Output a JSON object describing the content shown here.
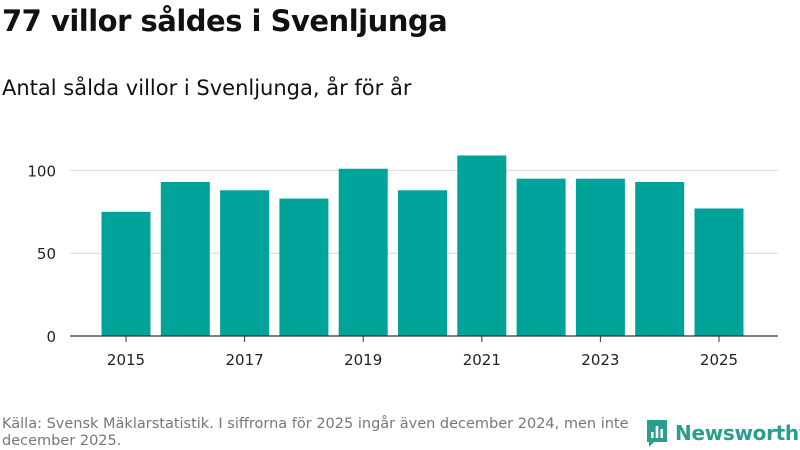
{
  "header": {
    "title": "77 villor såldes i Svenljunga",
    "subtitle": "Antal sålda villor i Svenljunga, år för år"
  },
  "footer": {
    "source_note": "Källa: Svensk Mäklarstatistik. I siffrorna för 2025 ingår även december 2024, men inte december 2025.",
    "brand_name": "Newsworthy"
  },
  "colors": {
    "bar": "#00a39a",
    "grid": "#d9d9d9",
    "axis": "#333333",
    "brand": "#2a9d8f"
  },
  "chart_data": {
    "type": "bar",
    "title": "Antal sålda villor i Svenljunga, år för år",
    "xlabel": "",
    "ylabel": "",
    "x": [
      2015,
      2016,
      2017,
      2018,
      2019,
      2020,
      2021,
      2022,
      2023,
      2024,
      2025
    ],
    "values": [
      75,
      93,
      88,
      83,
      101,
      88,
      109,
      95,
      95,
      93,
      77
    ],
    "x_tick_labels": [
      "2015",
      "2017",
      "2019",
      "2021",
      "2023",
      "2025"
    ],
    "y_ticks": [
      0,
      50,
      100
    ],
    "ylim": [
      0,
      115
    ],
    "grid": true
  }
}
